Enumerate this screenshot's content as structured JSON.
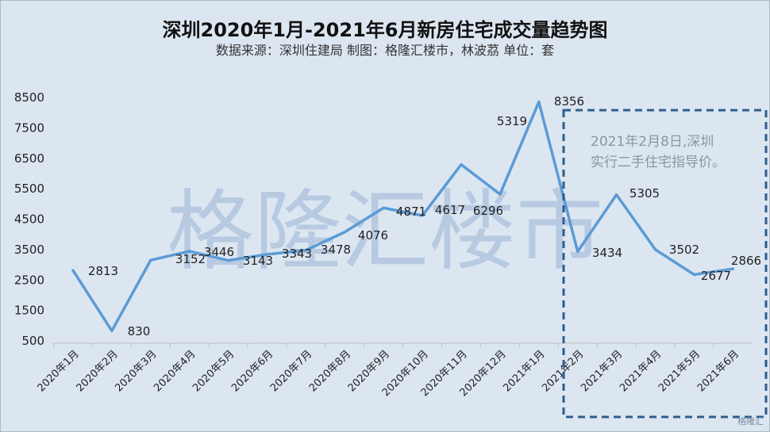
{
  "title": "深圳2020年1月-2021年6月新房住宅成交量趋势图",
  "subtitle": "数据来源：深圳住建局  制图：格隆汇楼市，林波茘 单位：套",
  "watermark": "格隆汇楼市",
  "annotation": "2021年2月8日,深圳\n实行二手住宅指导价。",
  "brand": "格隆汇",
  "colors": {
    "line": "#5b9bd5",
    "axis_text": "#222222",
    "dashed_box": "#2e5d8e",
    "background": "#dce6f1"
  },
  "chart_data": {
    "type": "line",
    "title": "深圳2020年1月-2021年6月新房住宅成交量趋势图",
    "xlabel": "",
    "ylabel": "",
    "categories": [
      "2020年1月",
      "2020年2月",
      "2020年3月",
      "2020年4月",
      "2020年5月",
      "2020年6月",
      "2020年7月",
      "2020年8月",
      "2020年9月",
      "2020年10月",
      "2020年11月",
      "2020年12月",
      "2021年1月",
      "2021年2月",
      "2021年3月",
      "2021年4月",
      "2021年5月",
      "2021年6月"
    ],
    "values": [
      2813,
      830,
      3152,
      3446,
      3143,
      3343,
      3478,
      4076,
      4871,
      4617,
      6296,
      5319,
      8356,
      3434,
      5305,
      3502,
      2677,
      2866
    ],
    "data_labels": [
      "2813",
      "830",
      "3152",
      "3446",
      "3143",
      "3343",
      "3478",
      "4076",
      "4871",
      "4617",
      "6296",
      "5319",
      "8356",
      "3434",
      "5305",
      "3502",
      "2677",
      "2866"
    ],
    "y_ticks": [
      500,
      1500,
      2500,
      3500,
      4500,
      5500,
      6500,
      7500,
      8500
    ],
    "ylim": [
      500,
      8500
    ],
    "grid": false,
    "legend": "none",
    "highlight_range": [
      "2021年2月",
      "2021年6月"
    ]
  }
}
